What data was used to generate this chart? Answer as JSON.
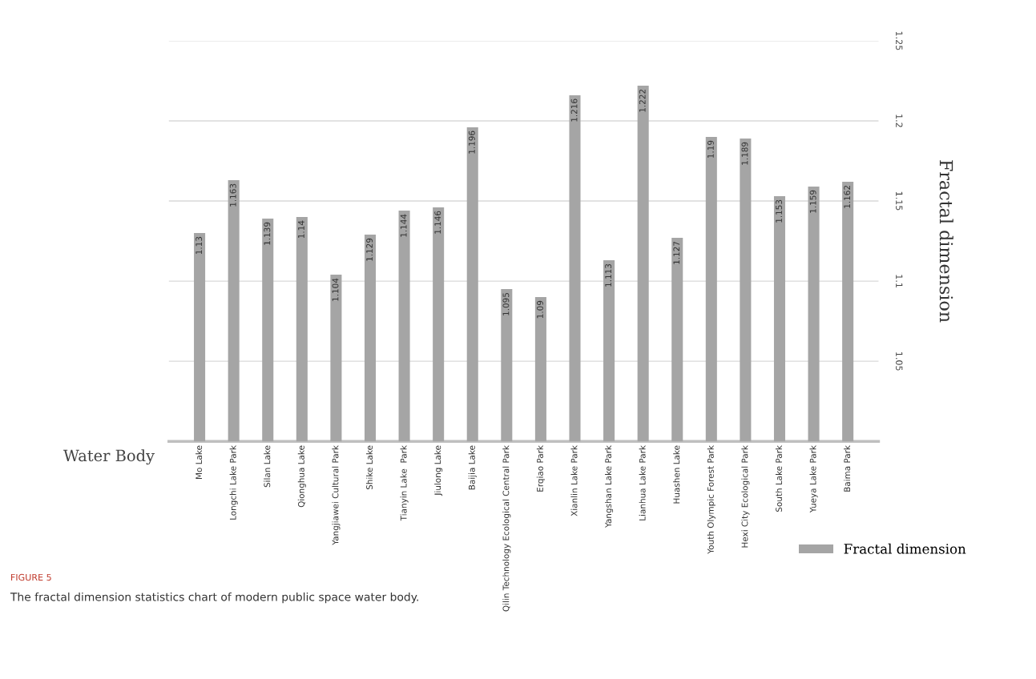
{
  "chart_data": {
    "type": "bar",
    "xlabel": "Water Body",
    "ylabel": "Fractal dimension",
    "categories": [
      "Mo Lake",
      "Longchi Lake Park",
      "Silan Lake",
      "Qionghua Lake",
      "Yangjiawei Cultural Park",
      "Shike Lake",
      "Tianyin Lake  Park",
      "Jiulong Lake",
      "Baijia Lake",
      "Qilin Technology Ecological Central Park",
      "Erqiao Park",
      "Xianlin Lake Park",
      "Yangshan Lake Park",
      "Lianhua Lake Park",
      "Huashen Lake",
      "Youth Olympic Forest Park",
      "Hexi City Ecological Park",
      "South Lake Park",
      "Yueya Lake Park",
      "Baima Park"
    ],
    "series": [
      {
        "name": "Fractal dimension",
        "color": "#a5a5a5",
        "values": [
          1.13,
          1.163,
          1.139,
          1.14,
          1.104,
          1.129,
          1.144,
          1.146,
          1.196,
          1.095,
          1.09,
          1.216,
          1.113,
          1.222,
          1.127,
          1.19,
          1.189,
          1.153,
          1.159,
          1.162
        ]
      }
    ],
    "ylim": [
      1.0,
      1.25
    ],
    "yticks": [
      1.05,
      1.1,
      1.15,
      1.2,
      1.25
    ],
    "grid": "y",
    "legend": "bottom right",
    "data_labels": true,
    "annotations": [
      "FIGURE 5",
      "The fractal dimension statistics chart of modern public space water body."
    ]
  }
}
